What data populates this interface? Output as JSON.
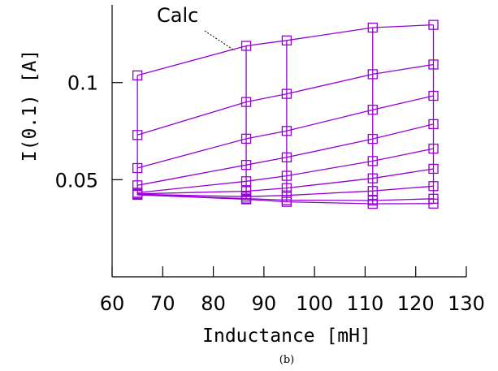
{
  "chart_data": {
    "type": "line",
    "title": "",
    "xlabel": "Inductance [mH]",
    "ylabel": "I(0.1) [A]",
    "caption": "(b)",
    "annotation": "Calc",
    "xlim": [
      60,
      130
    ],
    "ylim": [
      0,
      0.14
    ],
    "xticks": [
      60,
      70,
      80,
      90,
      100,
      110,
      120,
      130
    ],
    "yticks": [
      0.05,
      0.1
    ],
    "ytick_labels": [
      "0.05",
      "0.1"
    ],
    "x": [
      65,
      86.5,
      94.5,
      111.5,
      123.5
    ],
    "series": [
      {
        "values": [
          0.1037,
          0.1189,
          0.1217,
          0.1283,
          0.1297
        ]
      },
      {
        "values": [
          0.073,
          0.09,
          0.0942,
          0.1043,
          0.1093
        ]
      },
      {
        "values": [
          0.056,
          0.0711,
          0.0751,
          0.086,
          0.0932
        ]
      },
      {
        "values": [
          0.0471,
          0.0576,
          0.0615,
          0.071,
          0.0786
        ]
      },
      {
        "values": [
          0.0433,
          0.0492,
          0.052,
          0.0596,
          0.066
        ]
      },
      {
        "values": [
          0.0427,
          0.0441,
          0.0457,
          0.0507,
          0.0556
        ]
      },
      {
        "values": [
          0.0425,
          0.0413,
          0.0419,
          0.0442,
          0.0467
        ]
      },
      {
        "values": [
          0.0423,
          0.0403,
          0.0395,
          0.0393,
          0.0402
        ]
      },
      {
        "values": [
          0.0422,
          0.0399,
          0.0386,
          0.0376,
          0.0377
        ]
      }
    ],
    "color": "#9400d3",
    "marker": "open-square",
    "grid": false,
    "legend": "none"
  }
}
